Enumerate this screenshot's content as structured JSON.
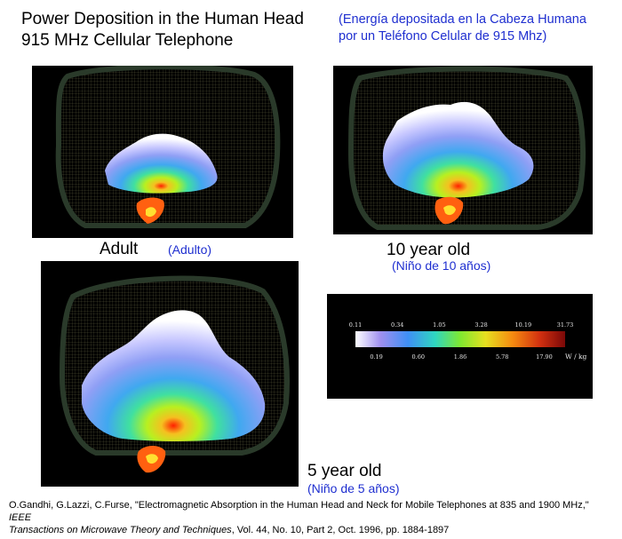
{
  "title": {
    "line1": "Power Deposition in the Human Head",
    "line2": "915 MHz Cellular Telephone"
  },
  "title_es": {
    "line1": "(Energía depositada en la Cabeza  Humana",
    "line2": "por un Teléfono Celular de 915 Mhz)"
  },
  "panels": {
    "adult": {
      "label": "Adult",
      "label_es": "(Adulto)"
    },
    "ten": {
      "label": "10 year old",
      "label_es": "(Niño de 10 años)"
    },
    "five": {
      "label": "5 year old",
      "label_es": "(Niño de 5 años)"
    }
  },
  "colorbar": {
    "top_ticks": [
      "0.11",
      "0.34",
      "1.05",
      "3.28",
      "10.19",
      "31.73"
    ],
    "bottom_ticks": [
      "0.19",
      "0.60",
      "1.86",
      "5.78",
      "17.90"
    ],
    "unit": "W / kg",
    "colors": [
      "#ffffff",
      "#9f8ff0",
      "#3f8ff5",
      "#2fd6c0",
      "#7fe830",
      "#e6e020",
      "#f58a10",
      "#d23010",
      "#7a0808"
    ]
  },
  "citation": {
    "authors_title": "O.Gandhi, G.Lazzi, C.Furse, \"Electromagnetic Absorption in the Human Head and Neck for Mobile Telephones at 835 and 1900 MHz,\"",
    "journal_part1": "IEEE",
    "journal_part2": "Transactions on Microwave Theory and Techniques",
    "details": ", Vol. 44, No. 10, Part 2, Oct. 1996, pp. 1884-1897"
  }
}
